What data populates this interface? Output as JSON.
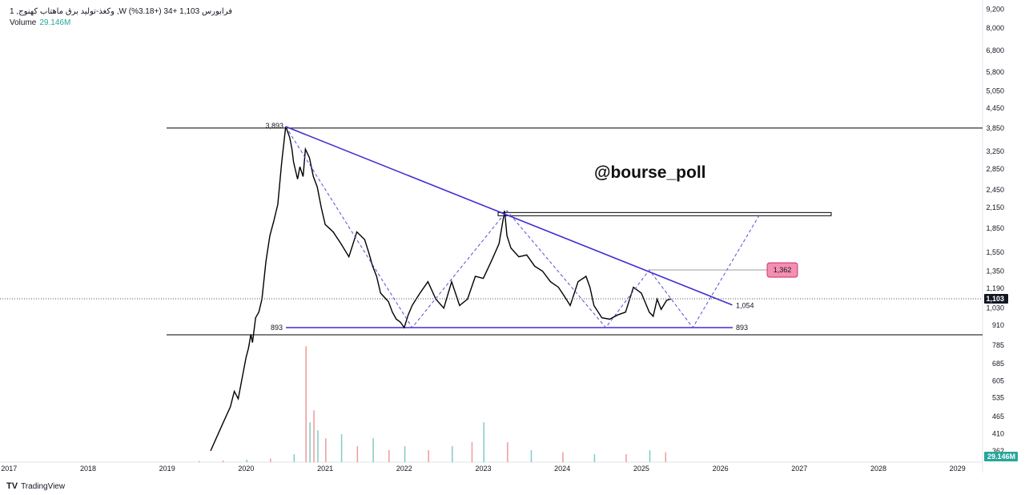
{
  "header": {
    "symbol_line": "1 ,وکغذ-تولید برق ماهتاب کهنوج ,W فرابورس  1,103  +34 (+3.18%)",
    "volume_label": "Volume",
    "volume_value": "29.146M"
  },
  "watermark": "@bourse_poll",
  "footer": {
    "logo_icon": "tradingview-logo-icon",
    "brand": "TradingView"
  },
  "colors": {
    "trendline": "#3f2fcf",
    "dashed": "#5b4bd6",
    "price": "#000000",
    "target_badge": "#f48fb1",
    "volume_up": "#80cbc4",
    "volume_down": "#ef9a9a"
  },
  "annotations": {
    "peak_label": "3,893",
    "support_label_left": "893",
    "support_label_right": "893",
    "trend_end_label": "1,054",
    "target_badge": "1,362"
  },
  "chart_data": {
    "type": "line",
    "price_scale": "log",
    "x_ticks": [
      "2017",
      "2018",
      "2019",
      "2020",
      "2021",
      "2022",
      "2023",
      "2024",
      "2025",
      "2026",
      "2027",
      "2028",
      "2029"
    ],
    "y_ticks": [
      "9,200",
      "8,000",
      "6,800",
      "5,800",
      "5,050",
      "4,450",
      "3,850",
      "3,250",
      "2,850",
      "2,450",
      "2,150",
      "1,850",
      "1,550",
      "1,350",
      "1,190",
      "1,030",
      "910",
      "785",
      "685",
      "605",
      "535",
      "465",
      "410",
      "362"
    ],
    "y_tick_values": [
      9200,
      8000,
      6800,
      5800,
      5050,
      4450,
      3850,
      3250,
      2850,
      2450,
      2150,
      1850,
      1550,
      1350,
      1190,
      1030,
      910,
      785,
      685,
      605,
      535,
      465,
      410,
      362
    ],
    "last_price_label": "1,103",
    "volume_axis_label": "29.146M",
    "series": [
      {
        "name": "",
        "x": [
          2019.55,
          2019.7,
          2019.8,
          2019.85,
          2019.9,
          2019.95,
          2020.0,
          2020.03,
          2020.06,
          2020.08,
          2020.12,
          2020.16,
          2020.18,
          2020.2,
          2020.25,
          2020.3,
          2020.35,
          2020.4,
          2020.45,
          2020.5,
          2020.55,
          2020.58,
          2020.6,
          2020.65,
          2020.68,
          2020.72,
          2020.75,
          2020.8,
          2020.85,
          2020.9,
          2020.95,
          2021.0,
          2021.05,
          2021.1,
          2021.2,
          2021.3,
          2021.4,
          2021.5,
          2021.55,
          2021.6,
          2021.65,
          2021.7,
          2021.8,
          2021.85,
          2021.9,
          2021.95,
          2022.0,
          2022.05,
          2022.1,
          2022.15,
          2022.2,
          2022.3,
          2022.4,
          2022.5,
          2022.6,
          2022.7,
          2022.8,
          2022.9,
          2023.0,
          2023.1,
          2023.2,
          2023.27,
          2023.3,
          2023.35,
          2023.45,
          2023.55,
          2023.65,
          2023.75,
          2023.85,
          2023.95,
          2024.0,
          2024.1,
          2024.2,
          2024.3,
          2024.35,
          2024.4,
          2024.5,
          2024.6,
          2024.7,
          2024.8,
          2024.9,
          2025.0,
          2025.1,
          2025.15,
          2025.2,
          2025.25,
          2025.32,
          2025.38
        ],
        "y": [
          362,
          440,
          500,
          560,
          530,
          620,
          720,
          770,
          850,
          800,
          960,
          1000,
          1050,
          1100,
          1450,
          1750,
          1950,
          2200,
          3000,
          3893,
          3600,
          3300,
          3000,
          2650,
          2900,
          2700,
          3300,
          3100,
          2700,
          2500,
          2150,
          1900,
          1850,
          1800,
          1650,
          1500,
          1800,
          1700,
          1550,
          1400,
          1300,
          1150,
          1080,
          1000,
          950,
          930,
          893,
          980,
          1050,
          1100,
          1150,
          1250,
          1100,
          1030,
          1250,
          1050,
          1100,
          1300,
          1280,
          1450,
          1650,
          2100,
          1750,
          1600,
          1500,
          1520,
          1400,
          1350,
          1250,
          1200,
          1150,
          1050,
          1250,
          1300,
          1200,
          1050,
          960,
          950,
          980,
          1000,
          1200,
          1150,
          1000,
          970,
          1100,
          1020,
          1090,
          1103
        ]
      }
    ],
    "volume": {
      "x": [
        2019.4,
        2019.7,
        2020.0,
        2020.3,
        2020.6,
        2020.75,
        2020.8,
        2020.85,
        2020.9,
        2021.0,
        2021.2,
        2021.4,
        2021.6,
        2021.8,
        2022.0,
        2022.3,
        2022.6,
        2022.85,
        2023.0,
        2023.3,
        2023.6,
        2024.0,
        2024.4,
        2024.8,
        2025.1,
        2025.3
      ],
      "values": [
        0.3,
        0.4,
        0.6,
        0.9,
        2.0,
        29.1,
        10.0,
        13.0,
        8.0,
        6.0,
        7.0,
        4.0,
        6.0,
        3.0,
        4.0,
        3.0,
        4.0,
        5.0,
        10.0,
        5.0,
        3.0,
        2.5,
        2.0,
        2.0,
        3.0,
        2.5
      ]
    },
    "levels": [
      3850,
      893,
      2050
    ],
    "trendline": {
      "from": [
        2020.5,
        3893
      ],
      "to": [
        2026.15,
        1054
      ]
    },
    "target_projection": {
      "from": [
        2025.65,
        893
      ],
      "to": [
        2026.5,
        2050
      ]
    }
  }
}
